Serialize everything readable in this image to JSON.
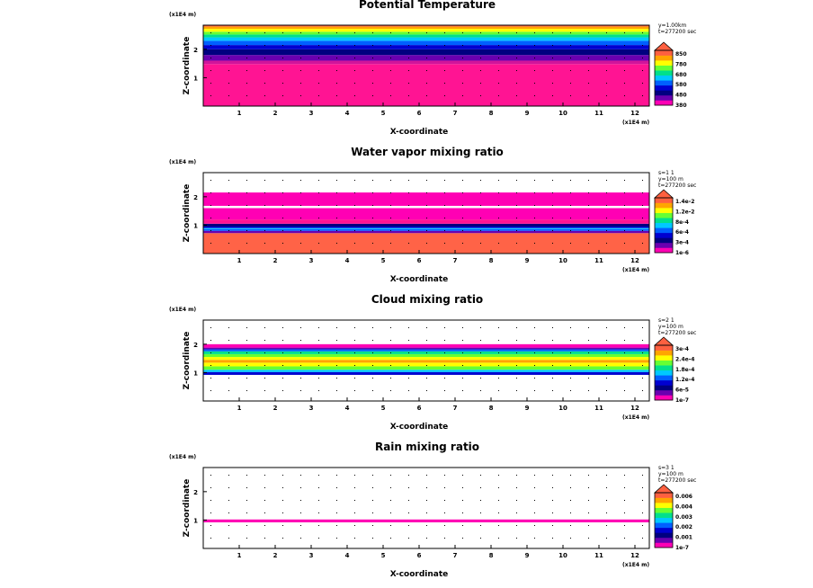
{
  "chart_data": [
    {
      "type": "heatmap",
      "title": "Potential Temperature",
      "xlabel": "X-coordinate",
      "ylabel": "Z-coordinate",
      "x_unit": "(x1E4 m)",
      "y_unit": "(x1E4 m)",
      "xlim": [
        0,
        12.4
      ],
      "ylim": [
        0,
        2.85
      ],
      "x_ticks": [
        "1",
        "2",
        "3",
        "4",
        "5",
        "6",
        "7",
        "8",
        "9",
        "10",
        "11",
        "12"
      ],
      "y_ticks": [
        "1",
        "2"
      ],
      "info": [
        "y=1.00km",
        "t=277200 sec"
      ],
      "colorbar_labels": [
        "850",
        "780",
        "680",
        "580",
        "480",
        "380"
      ],
      "bands": [
        {
          "z0": 0.0,
          "z1": 1.48,
          "color": "#ff1493"
        },
        {
          "z0": 1.48,
          "z1": 1.6,
          "color": "#d1149a"
        },
        {
          "z0": 1.6,
          "z1": 1.8,
          "color": "#6a00b0"
        },
        {
          "z0": 1.8,
          "z1": 2.0,
          "color": "#000080"
        },
        {
          "z0": 2.0,
          "z1": 2.15,
          "color": "#0000d0"
        },
        {
          "z0": 2.15,
          "z1": 2.3,
          "color": "#0060ff"
        },
        {
          "z0": 2.3,
          "z1": 2.42,
          "color": "#00c8ff"
        },
        {
          "z0": 2.42,
          "z1": 2.52,
          "color": "#00e08c"
        },
        {
          "z0": 2.52,
          "z1": 2.62,
          "color": "#66ff33"
        },
        {
          "z0": 2.62,
          "z1": 2.72,
          "color": "#ffff00"
        },
        {
          "z0": 2.72,
          "z1": 2.8,
          "color": "#ffa500"
        },
        {
          "z0": 2.8,
          "z1": 2.85,
          "color": "#ff6040"
        }
      ]
    },
    {
      "type": "heatmap",
      "title": "Water vapor mixing ratio",
      "xlabel": "X-coordinate",
      "ylabel": "Z-coordinate",
      "x_unit": "(x1E4 m)",
      "y_unit": "(x1E4 m)",
      "xlim": [
        0,
        12.4
      ],
      "ylim": [
        0,
        2.85
      ],
      "x_ticks": [
        "1",
        "2",
        "3",
        "4",
        "5",
        "6",
        "7",
        "8",
        "9",
        "10",
        "11",
        "12"
      ],
      "y_ticks": [
        "1",
        "2"
      ],
      "info": [
        "s=1 1",
        "y=100 m",
        "t=277200 sec"
      ],
      "colorbar_labels": [
        "1.4e-2",
        "1.2e-2",
        "8e-4",
        "6e-4",
        "3e-4",
        "1e-6"
      ],
      "bands": [
        {
          "z0": 0.0,
          "z1": 0.72,
          "color": "#ff6347"
        },
        {
          "z0": 0.72,
          "z1": 0.8,
          "color": "#6a00b0"
        },
        {
          "z0": 0.8,
          "z1": 0.86,
          "color": "#0060ff"
        },
        {
          "z0": 0.86,
          "z1": 0.9,
          "color": "#00c8ff"
        },
        {
          "z0": 0.9,
          "z1": 0.95,
          "color": "#0000d0"
        },
        {
          "z0": 0.95,
          "z1": 1.05,
          "color": "#000080"
        },
        {
          "z0": 1.05,
          "z1": 1.2,
          "color": "#ff1493"
        },
        {
          "z0": 1.2,
          "z1": 1.6,
          "color": "#ff00b4"
        },
        {
          "z0": 1.6,
          "z1": 1.68,
          "color": "#ffffff"
        },
        {
          "z0": 1.68,
          "z1": 2.15,
          "color": "#ff00b4"
        }
      ]
    },
    {
      "type": "heatmap",
      "title": "Cloud mixing ratio",
      "xlabel": "X-coordinate",
      "ylabel": "Z-coordinate",
      "x_unit": "(x1E4 m)",
      "y_unit": "(x1E4 m)",
      "xlim": [
        0,
        12.4
      ],
      "ylim": [
        0,
        2.85
      ],
      "x_ticks": [
        "1",
        "2",
        "3",
        "4",
        "5",
        "6",
        "7",
        "8",
        "9",
        "10",
        "11",
        "12"
      ],
      "y_ticks": [
        "1",
        "2"
      ],
      "info": [
        "s=2 1",
        "y=100 m",
        "t=277200 sec"
      ],
      "colorbar_labels": [
        "3e-4",
        "2.4e-4",
        "1.8e-4",
        "1.2e-4",
        "6e-5",
        "1e-7"
      ],
      "bands": [
        {
          "z0": 0.92,
          "z1": 1.02,
          "color": "#0000d0"
        },
        {
          "z0": 1.02,
          "z1": 1.1,
          "color": "#00c8ff"
        },
        {
          "z0": 1.1,
          "z1": 1.22,
          "color": "#66ff33"
        },
        {
          "z0": 1.22,
          "z1": 1.35,
          "color": "#ffff00"
        },
        {
          "z0": 1.35,
          "z1": 1.45,
          "color": "#ffa500"
        },
        {
          "z0": 1.45,
          "z1": 1.55,
          "color": "#ffff00"
        },
        {
          "z0": 1.55,
          "z1": 1.65,
          "color": "#66ff33"
        },
        {
          "z0": 1.65,
          "z1": 1.75,
          "color": "#00e08c"
        },
        {
          "z0": 1.75,
          "z1": 1.82,
          "color": "#0060ff"
        },
        {
          "z0": 1.82,
          "z1": 1.88,
          "color": "#6a00b0"
        },
        {
          "z0": 1.88,
          "z1": 2.0,
          "color": "#ff00b4"
        }
      ]
    },
    {
      "type": "heatmap",
      "title": "Rain mixing ratio",
      "xlabel": "X-coordinate",
      "ylabel": "Z-coordinate",
      "x_unit": "(x1E4 m)",
      "y_unit": "(x1E4 m)",
      "xlim": [
        0,
        12.4
      ],
      "ylim": [
        0,
        2.85
      ],
      "x_ticks": [
        "1",
        "2",
        "3",
        "4",
        "5",
        "6",
        "7",
        "8",
        "9",
        "10",
        "11",
        "12"
      ],
      "y_ticks": [
        "1",
        "2"
      ],
      "info": [
        "s=3 1",
        "y=100 m",
        "t=277200 sec"
      ],
      "colorbar_labels": [
        "0.006",
        "0.004",
        "0.003",
        "0.002",
        "0.001",
        "1e-7"
      ],
      "bands": [
        {
          "z0": 0.92,
          "z1": 1.02,
          "color": "#ff00b4"
        }
      ]
    }
  ],
  "colorbar_colors": [
    "#ff00b4",
    "#6a00b0",
    "#000080",
    "#0000d0",
    "#0060ff",
    "#00c8ff",
    "#00e08c",
    "#66ff33",
    "#ffff00",
    "#ffa500",
    "#ff6040"
  ]
}
